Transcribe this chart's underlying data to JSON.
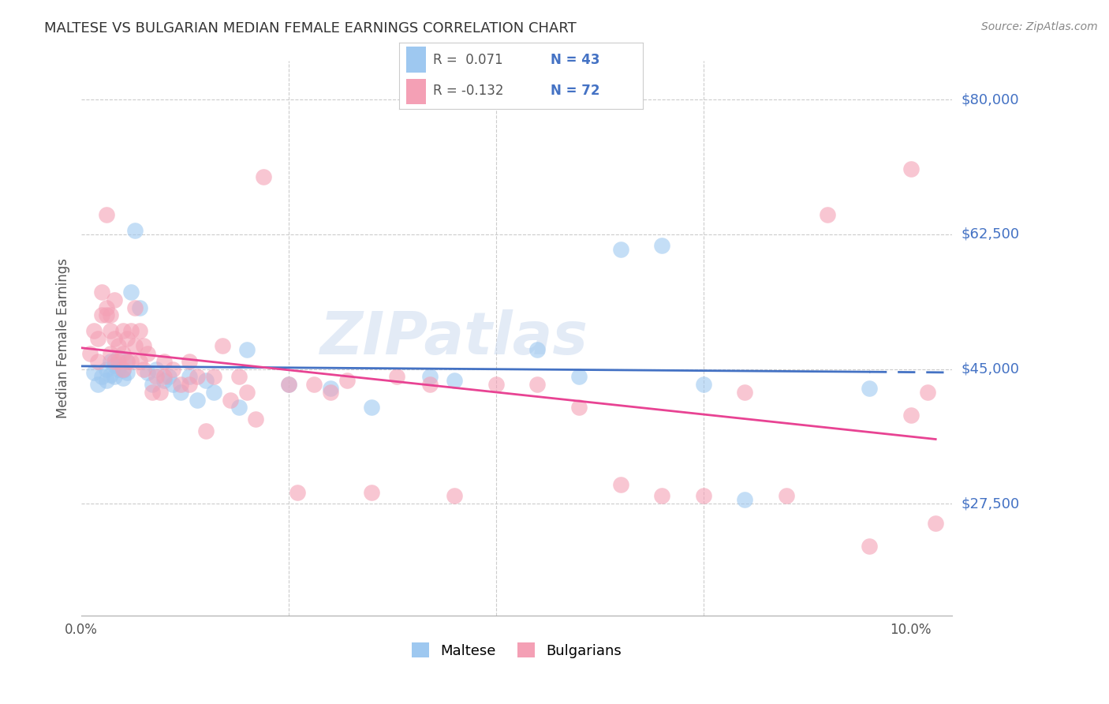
{
  "title": "MALTESE VS BULGARIAN MEDIAN FEMALE EARNINGS CORRELATION CHART",
  "source": "Source: ZipAtlas.com",
  "ylabel": "Median Female Earnings",
  "ytick_vals": [
    27500,
    45000,
    62500,
    80000
  ],
  "ytick_labels": [
    "$27,500",
    "$45,000",
    "$62,500",
    "$80,000"
  ],
  "xtick_vals": [
    0.0,
    10.0
  ],
  "xtick_labels": [
    "0.0%",
    "10.0%"
  ],
  "xlim": [
    0.0,
    10.5
  ],
  "ylim": [
    13000,
    85000
  ],
  "blue_color": "#9EC8F0",
  "pink_color": "#F4A0B5",
  "blue_line_color": "#4472C4",
  "pink_line_color": "#E84393",
  "watermark": "ZIPatlas",
  "blue_R": 0.071,
  "blue_N": 43,
  "pink_R": -0.132,
  "pink_N": 72,
  "blue_x": [
    0.15,
    0.2,
    0.25,
    0.3,
    0.3,
    0.35,
    0.35,
    0.4,
    0.4,
    0.45,
    0.45,
    0.5,
    0.5,
    0.55,
    0.55,
    0.6,
    0.65,
    0.7,
    0.8,
    0.85,
    0.9,
    1.0,
    1.05,
    1.1,
    1.2,
    1.3,
    1.4,
    1.5,
    1.6,
    1.9,
    2.0,
    2.5,
    3.0,
    3.5,
    4.2,
    4.5,
    5.5,
    6.0,
    6.5,
    7.0,
    7.5,
    8.0,
    9.5
  ],
  "blue_y": [
    44500,
    43000,
    44000,
    45000,
    43500,
    44200,
    46000,
    45500,
    44000,
    46500,
    45000,
    44800,
    43800,
    46000,
    44500,
    55000,
    63000,
    53000,
    44500,
    43000,
    45000,
    43500,
    44000,
    43000,
    42000,
    44000,
    41000,
    43500,
    42000,
    40000,
    47500,
    43000,
    42500,
    40000,
    44000,
    43500,
    47500,
    44000,
    60500,
    61000,
    43000,
    28000,
    42500
  ],
  "pink_x": [
    0.1,
    0.15,
    0.2,
    0.2,
    0.25,
    0.25,
    0.3,
    0.3,
    0.3,
    0.35,
    0.35,
    0.35,
    0.4,
    0.4,
    0.4,
    0.45,
    0.45,
    0.5,
    0.5,
    0.5,
    0.55,
    0.55,
    0.6,
    0.6,
    0.65,
    0.65,
    0.7,
    0.7,
    0.75,
    0.75,
    0.8,
    0.85,
    0.9,
    0.95,
    1.0,
    1.0,
    1.1,
    1.2,
    1.3,
    1.3,
    1.4,
    1.5,
    1.6,
    1.7,
    1.8,
    1.9,
    2.0,
    2.1,
    2.2,
    2.5,
    2.6,
    2.8,
    3.0,
    3.2,
    3.5,
    3.8,
    4.2,
    4.5,
    5.0,
    5.5,
    6.0,
    6.5,
    7.0,
    7.5,
    8.0,
    8.5,
    9.0,
    9.5,
    10.0,
    10.0,
    10.2,
    10.3
  ],
  "pink_y": [
    47000,
    50000,
    46000,
    49000,
    52000,
    55000,
    52000,
    53000,
    65000,
    47000,
    50000,
    52000,
    46000,
    49000,
    54000,
    46000,
    48000,
    47000,
    45000,
    50000,
    46000,
    49000,
    46000,
    50000,
    53000,
    48000,
    46000,
    50000,
    48000,
    45000,
    47000,
    42000,
    44000,
    42000,
    46000,
    44000,
    45000,
    43000,
    43000,
    46000,
    44000,
    37000,
    44000,
    48000,
    41000,
    44000,
    42000,
    38500,
    70000,
    43000,
    29000,
    43000,
    42000,
    43500,
    29000,
    44000,
    43000,
    28500,
    43000,
    43000,
    40000,
    30000,
    28500,
    28500,
    42000,
    28500,
    65000,
    22000,
    71000,
    39000,
    42000,
    25000
  ]
}
